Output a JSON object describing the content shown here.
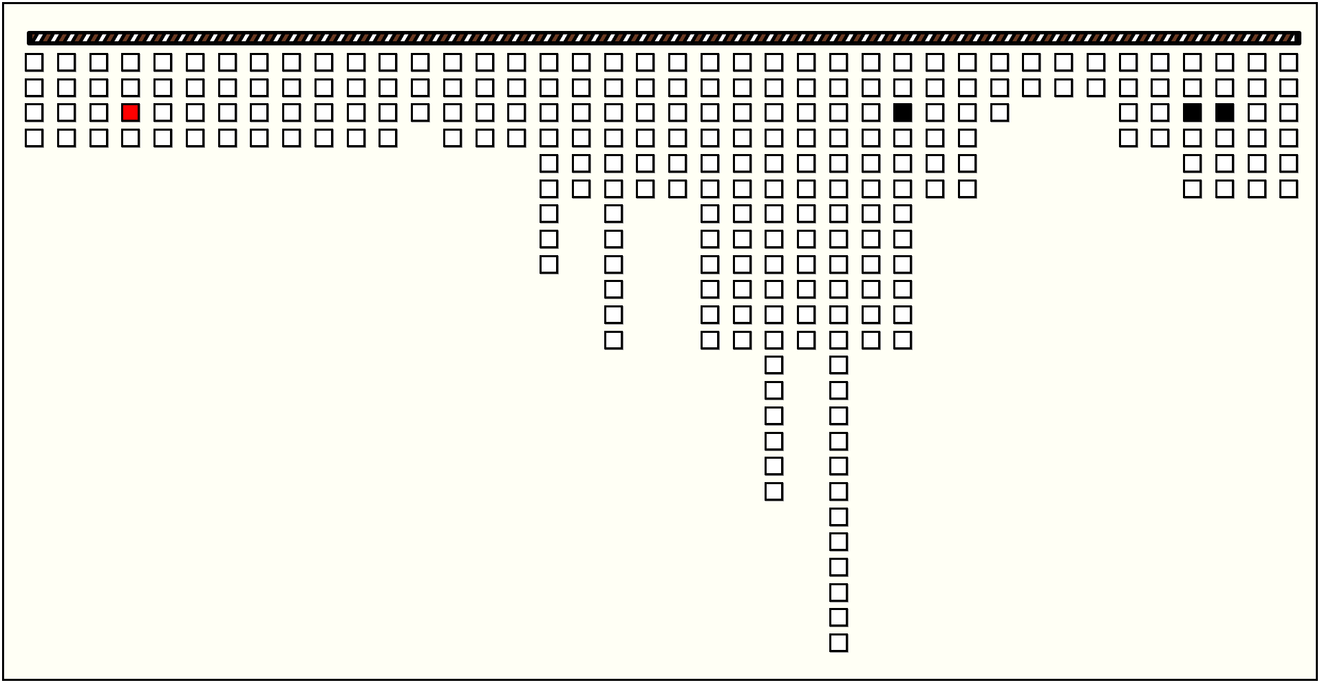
{
  "board": {
    "colors": {
      "background": "#fffff5",
      "cell": "#ffffff",
      "red": "#ff0000",
      "black": "#000000",
      "bar_stripe": "#6b3a22"
    },
    "column_heights": [
      4,
      4,
      4,
      4,
      4,
      4,
      4,
      4,
      4,
      4,
      4,
      4,
      3,
      4,
      4,
      4,
      9,
      6,
      12,
      6,
      6,
      12,
      12,
      18,
      12,
      24,
      12,
      12,
      6,
      6,
      3,
      2,
      2,
      2,
      4,
      4,
      6,
      6,
      6,
      6
    ],
    "marked_cells": [
      {
        "column": 4,
        "row": 3,
        "color": "red"
      },
      {
        "column": 28,
        "row": 3,
        "color": "black"
      },
      {
        "column": 37,
        "row": 3,
        "color": "black"
      },
      {
        "column": 38,
        "row": 3,
        "color": "black"
      }
    ]
  }
}
